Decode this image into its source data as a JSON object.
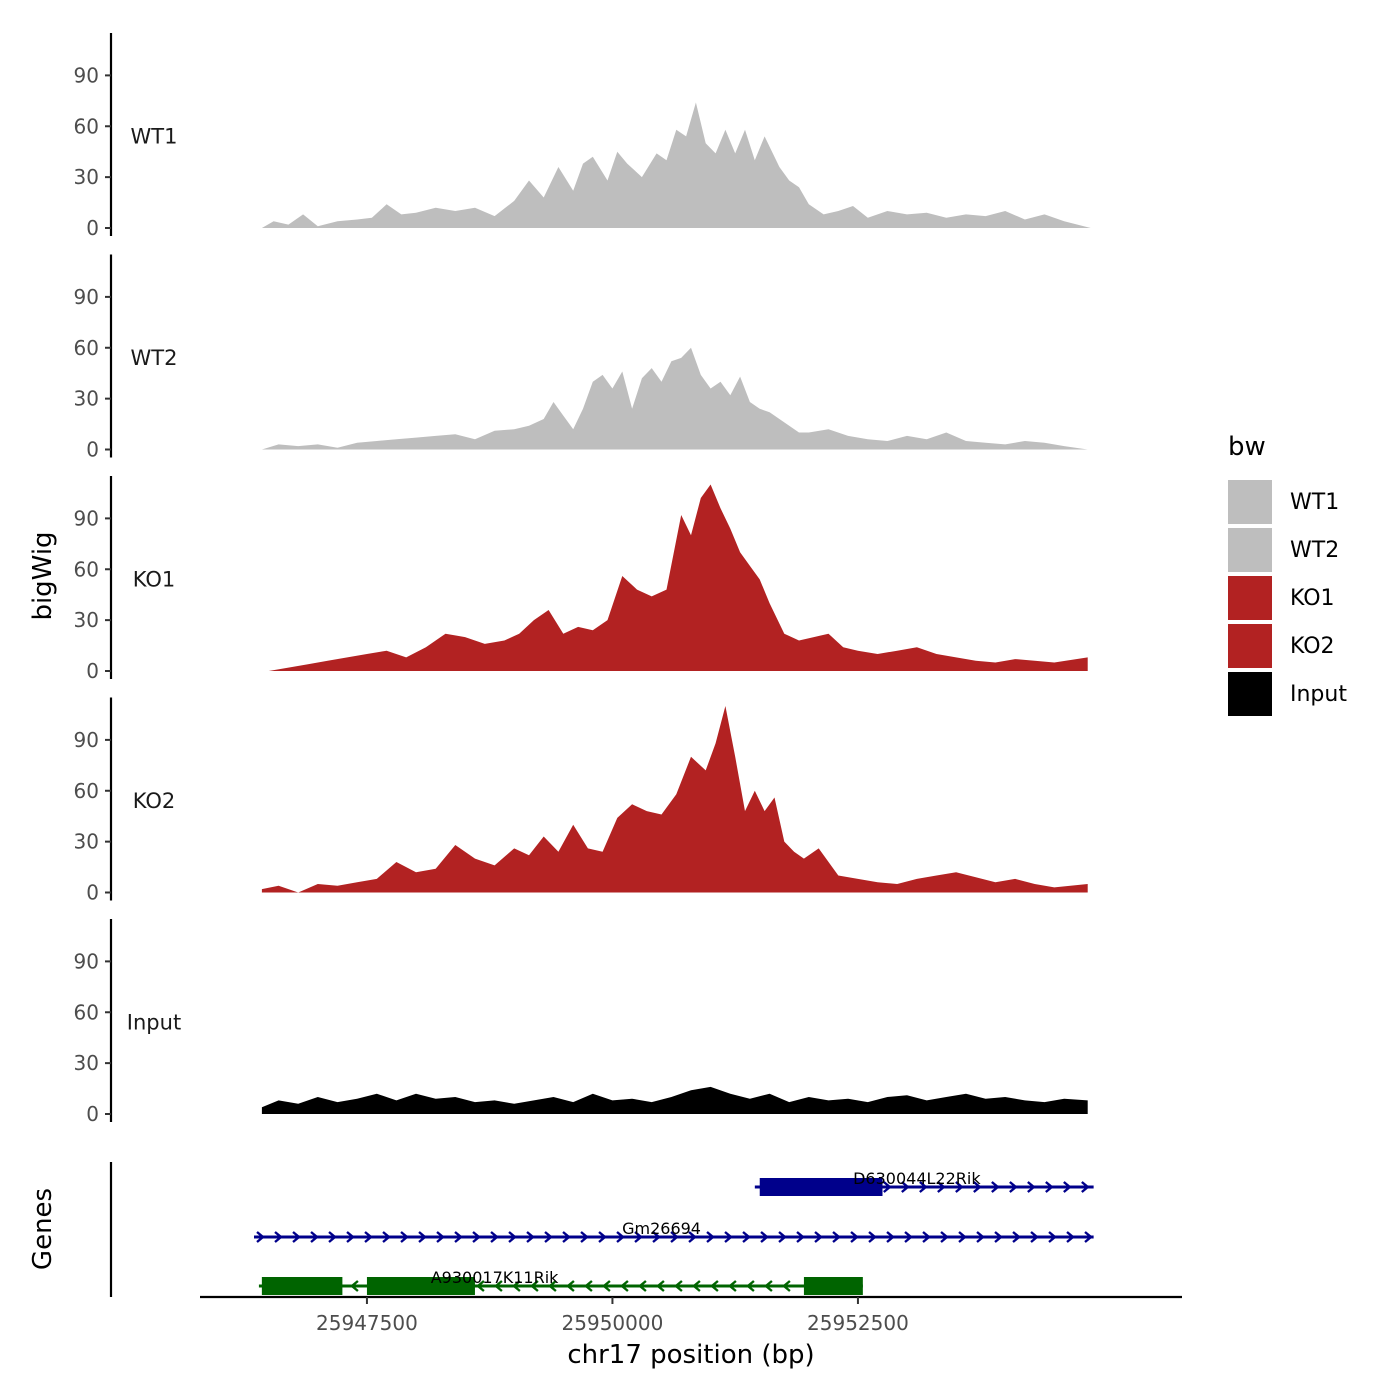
{
  "chart_data": {
    "type": "area",
    "title": "",
    "chromosome": "chr17",
    "xlabel": "chr17 position (bp)",
    "ylabel": "bigWig",
    "genes_label": "Genes",
    "xlim": [
      25945800,
      25955800
    ],
    "ylim": [
      0,
      115
    ],
    "yticks": [
      0,
      30,
      60,
      90
    ],
    "xticks": [
      25947500,
      25950000,
      25952500
    ],
    "xtick_labels": [
      "25947500",
      "25950000",
      "25952500"
    ],
    "series": [
      {
        "name": "WT1",
        "color": "#BEBEBE",
        "x": [
          25946430,
          25946550,
          25946700,
          25946850,
          25947000,
          25947200,
          25947400,
          25947550,
          25947700,
          25947850,
          25948000,
          25948200,
          25948400,
          25948600,
          25948800,
          25949000,
          25949150,
          25949300,
          25949450,
          25949600,
          25949700,
          25949800,
          25949950,
          25950050,
          25950150,
          25950300,
          25950450,
          25950550,
          25950650,
          25950750,
          25950850,
          25950950,
          25951050,
          25951150,
          25951250,
          25951350,
          25951450,
          25951550,
          25951700,
          25951800,
          25951900,
          25952000,
          25952150,
          25952300,
          25952450,
          25952600,
          25952800,
          25953000,
          25953200,
          25953400,
          25953600,
          25953800,
          25954000,
          25954200,
          25954400,
          25954600,
          25954870
        ],
        "values": [
          0,
          4,
          2,
          8,
          1,
          4,
          5,
          6,
          14,
          8,
          9,
          12,
          10,
          12,
          7,
          16,
          28,
          18,
          36,
          22,
          38,
          42,
          28,
          45,
          38,
          30,
          44,
          40,
          58,
          54,
          74,
          50,
          44,
          58,
          44,
          58,
          40,
          54,
          36,
          28,
          24,
          14,
          8,
          10,
          13,
          6,
          10,
          8,
          9,
          6,
          8,
          7,
          10,
          5,
          8,
          4,
          0
        ]
      },
      {
        "name": "WT2",
        "color": "#BEBEBE",
        "x": [
          25946430,
          25946600,
          25946800,
          25947000,
          25947200,
          25947400,
          25947600,
          25947800,
          25948000,
          25948200,
          25948400,
          25948600,
          25948800,
          25949000,
          25949150,
          25949300,
          25949400,
          25949500,
          25949600,
          25949700,
          25949800,
          25949900,
          25950000,
          25950100,
          25950200,
          25950300,
          25950400,
          25950500,
          25950600,
          25950700,
          25950800,
          25950900,
          25951000,
          25951100,
          25951200,
          25951300,
          25951400,
          25951500,
          25951600,
          25951700,
          25951800,
          25951900,
          25952000,
          25952200,
          25952400,
          25952600,
          25952800,
          25953000,
          25953200,
          25953400,
          25953600,
          25953800,
          25954000,
          25954200,
          25954400,
          25954600,
          25954840
        ],
        "values": [
          0,
          3,
          2,
          3,
          1,
          4,
          5,
          6,
          7,
          8,
          9,
          6,
          11,
          12,
          14,
          18,
          28,
          20,
          12,
          24,
          40,
          44,
          36,
          46,
          24,
          42,
          48,
          40,
          52,
          54,
          60,
          44,
          36,
          40,
          32,
          43,
          28,
          24,
          22,
          18,
          14,
          10,
          10,
          12,
          8,
          6,
          5,
          8,
          6,
          10,
          5,
          4,
          3,
          5,
          4,
          2,
          0
        ]
      },
      {
        "name": "KO1",
        "color": "#B22222",
        "x": [
          25946500,
          25946700,
          25946900,
          25947100,
          25947300,
          25947500,
          25947700,
          25947900,
          25948100,
          25948300,
          25948500,
          25948700,
          25948900,
          25949050,
          25949200,
          25949350,
          25949500,
          25949650,
          25949800,
          25949950,
          25950100,
          25950250,
          25950400,
          25950550,
          25950700,
          25950800,
          25950900,
          25951000,
          25951100,
          25951200,
          25951300,
          25951400,
          25951500,
          25951600,
          25951750,
          25951900,
          25952050,
          25952200,
          25952350,
          25952500,
          25952700,
          25952900,
          25953100,
          25953300,
          25953500,
          25953700,
          25953900,
          25954100,
          25954300,
          25954500,
          25954840
        ],
        "values": [
          0,
          2,
          4,
          6,
          8,
          10,
          12,
          8,
          14,
          22,
          20,
          16,
          18,
          22,
          30,
          36,
          22,
          26,
          24,
          30,
          56,
          48,
          44,
          48,
          92,
          80,
          102,
          110,
          96,
          84,
          70,
          62,
          54,
          40,
          22,
          18,
          20,
          22,
          14,
          12,
          10,
          12,
          14,
          10,
          8,
          6,
          5,
          7,
          6,
          5,
          8
        ]
      },
      {
        "name": "KO2",
        "color": "#B22222",
        "x": [
          25946430,
          25946600,
          25946800,
          25947000,
          25947200,
          25947400,
          25947600,
          25947800,
          25948000,
          25948200,
          25948400,
          25948600,
          25948800,
          25949000,
          25949150,
          25949300,
          25949450,
          25949600,
          25949750,
          25949900,
          25950050,
          25950200,
          25950350,
          25950500,
          25950650,
          25950800,
          25950950,
          25951050,
          25951150,
          25951250,
          25951350,
          25951450,
          25951550,
          25951650,
          25951750,
          25951850,
          25951950,
          25952100,
          25952300,
          25952500,
          25952700,
          25952900,
          25953100,
          25953300,
          25953500,
          25953700,
          25953900,
          25954100,
          25954300,
          25954500,
          25954840
        ],
        "values": [
          2,
          4,
          0,
          5,
          4,
          6,
          8,
          18,
          12,
          14,
          28,
          20,
          16,
          26,
          22,
          33,
          24,
          40,
          26,
          24,
          44,
          52,
          48,
          46,
          58,
          80,
          72,
          88,
          110,
          80,
          48,
          60,
          48,
          56,
          30,
          24,
          20,
          26,
          10,
          8,
          6,
          5,
          8,
          10,
          12,
          9,
          6,
          8,
          5,
          3,
          5
        ]
      },
      {
        "name": "Input",
        "color": "#000000",
        "x": [
          25946430,
          25946600,
          25946800,
          25947000,
          25947200,
          25947400,
          25947600,
          25947800,
          25948000,
          25948200,
          25948400,
          25948600,
          25948800,
          25949000,
          25949200,
          25949400,
          25949600,
          25949800,
          25950000,
          25950200,
          25950400,
          25950600,
          25950800,
          25951000,
          25951200,
          25951400,
          25951600,
          25951800,
          25952000,
          25952200,
          25952400,
          25952600,
          25952800,
          25953000,
          25953200,
          25953400,
          25953600,
          25953800,
          25954000,
          25954200,
          25954400,
          25954600,
          25954840
        ],
        "values": [
          4,
          8,
          6,
          10,
          7,
          9,
          12,
          8,
          12,
          9,
          10,
          7,
          8,
          6,
          8,
          10,
          7,
          12,
          8,
          9,
          7,
          10,
          14,
          16,
          12,
          9,
          12,
          7,
          10,
          8,
          9,
          7,
          10,
          11,
          8,
          10,
          12,
          9,
          10,
          8,
          7,
          9,
          8
        ]
      }
    ],
    "genes": [
      {
        "name": "D630044L22Rik",
        "strand": "+",
        "color": "#00008B",
        "start": 25951450,
        "end": 25954900,
        "exons": [
          [
            25951500,
            25952750
          ]
        ],
        "row": 0
      },
      {
        "name": "Gm26694",
        "strand": "+",
        "color": "#00008B",
        "start": 25946350,
        "end": 25954900,
        "exons": [],
        "row": 1
      },
      {
        "name": "A930017K11Rik",
        "strand": "-",
        "color": "#006400",
        "start": 25946400,
        "end": 25952550,
        "exons": [
          [
            25946430,
            25947250
          ],
          [
            25947500,
            25948600
          ],
          [
            25951950,
            25952550
          ]
        ],
        "row": 2
      }
    ],
    "legend": {
      "title": "bw",
      "position": "right",
      "entries": [
        {
          "label": "WT1",
          "color": "#BEBEBE"
        },
        {
          "label": "WT2",
          "color": "#BEBEBE"
        },
        {
          "label": "KO1",
          "color": "#B22222"
        },
        {
          "label": "KO2",
          "color": "#B22222"
        },
        {
          "label": "Input",
          "color": "#000000"
        }
      ]
    },
    "grid": false
  }
}
